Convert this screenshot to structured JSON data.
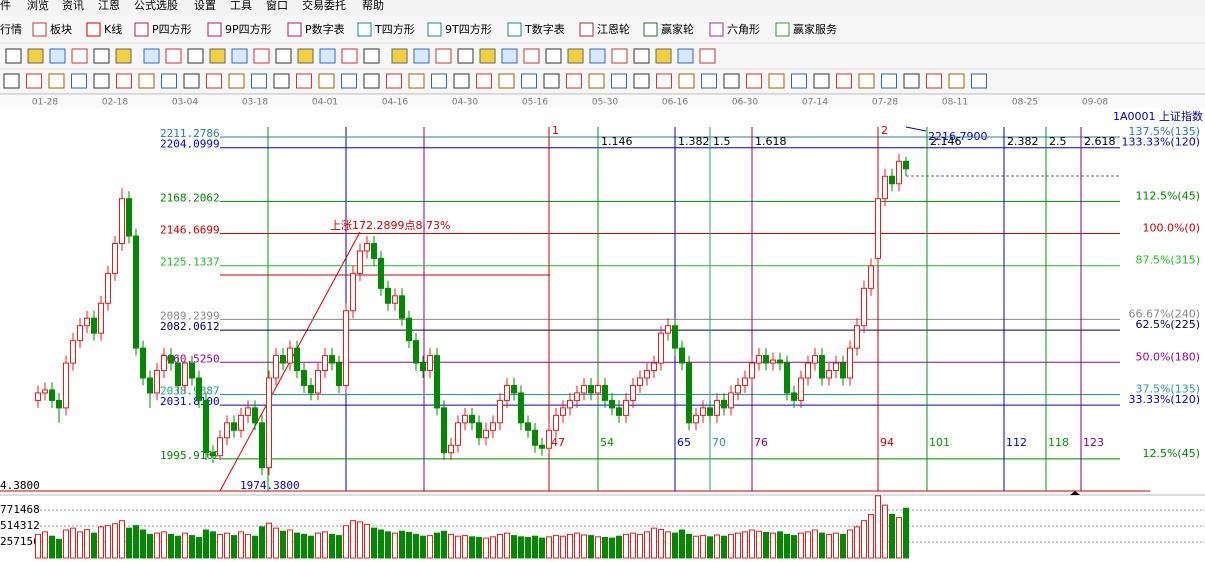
{
  "menu": [
    "件",
    "浏览",
    "资讯",
    "江恩",
    "公式选股",
    "设置",
    "工具",
    "窗口",
    "交易委托",
    "帮助"
  ],
  "toolbar": [
    "行情",
    "板块",
    "K线",
    "P四方形",
    "9P四方形",
    "P数字表",
    "T四方形",
    "9T四方形",
    "T数字表",
    "江恩轮",
    "赢家轮",
    "六角形",
    "赢家服务"
  ],
  "dates": [
    "01-28",
    "02-18",
    "03-04",
    "03-18",
    "04-01",
    "04-16",
    "04-30",
    "05-16",
    "05-30",
    "06-16",
    "06-30",
    "07-14",
    "07-28",
    "08-11",
    "08-25",
    "09-08"
  ],
  "symbol": "1A0001  上证指数",
  "levels": [
    {
      "value": 2211.2786,
      "label": "2211.2786",
      "pct": "137.5%(135)",
      "color": "#2a7aa8"
    },
    {
      "value": 2204.0999,
      "label": "2204.0999",
      "pct": "133.33%(120)",
      "color": "#0000cc"
    },
    {
      "value": 2168.2062,
      "label": "2168.2062",
      "pct": "112.5%(45)",
      "color": "#008800"
    },
    {
      "value": 2146.6699,
      "label": "2146.6699",
      "pct": "100.0%(0)",
      "color": "#cc0000"
    },
    {
      "value": 2125.1337,
      "label": "2125.1337",
      "pct": "87.5%(315)",
      "color": "#22bb22"
    },
    {
      "value": 2089.2399,
      "label": "2089.2399",
      "pct": "66.67%(240)",
      "color": "#888888"
    },
    {
      "value": 2082.0612,
      "label": "2082.0612",
      "pct": "62.5%(225)",
      "color": "#000066"
    },
    {
      "value": 2060.525,
      "label": "2060.5250",
      "pct": "50.0%(180)",
      "color": "#990099"
    },
    {
      "value": 2038.9887,
      "label": "2038.9887",
      "pct": "37.5%(135)",
      "color": "#2a9a9a"
    },
    {
      "value": 2031.81,
      "label": "2031.8100",
      "pct": "33.33%(120)",
      "color": "#0000cc"
    },
    {
      "value": 1995.9162,
      "label": "1995.9162",
      "pct": "12.5%(45)",
      "color": "#008800"
    },
    {
      "value": 1974.38,
      "label": "1974.3800",
      "color": "#cc0000"
    }
  ],
  "top_marker_label": "2216.7900",
  "cut_label": "4.3800",
  "annotation": "上涨172.2899点8.73%",
  "time_lines": [
    {
      "ratio": "1",
      "count": 47,
      "color": "#cc0000"
    },
    {
      "ratio": "1.146",
      "count": 54,
      "color": "#009900"
    },
    {
      "ratio": "1.382",
      "count": 65,
      "color": "#0000cc"
    },
    {
      "ratio": "1.5",
      "count": 70,
      "color": "#2a9a9a"
    },
    {
      "ratio": "1.618",
      "count": 76,
      "color": "#880088"
    },
    {
      "ratio": "2",
      "count": 94,
      "color": "#cc0000"
    },
    {
      "ratio": "2.146",
      "count": 101,
      "color": "#009900"
    },
    {
      "ratio": "2.382",
      "count": 112,
      "color": "#0000cc"
    },
    {
      "ratio": "2.5",
      "count": 118,
      "color": "#009900"
    },
    {
      "ratio": "2.618",
      "count": 123,
      "color": "#880088"
    }
  ],
  "candles": [
    [
      2035,
      2045,
      2030,
      2040
    ],
    [
      2040,
      2047,
      2035,
      2042
    ],
    [
      2042,
      2047,
      2030,
      2035
    ],
    [
      2035,
      2040,
      2020,
      2030
    ],
    [
      2030,
      2065,
      2025,
      2060
    ],
    [
      2060,
      2080,
      2055,
      2075
    ],
    [
      2075,
      2090,
      2070,
      2085
    ],
    [
      2085,
      2095,
      2080,
      2090
    ],
    [
      2090,
      2095,
      2075,
      2080
    ],
    [
      2080,
      2105,
      2075,
      2100
    ],
    [
      2100,
      2125,
      2095,
      2120
    ],
    [
      2120,
      2145,
      2115,
      2140
    ],
    [
      2140,
      2177,
      2135,
      2170
    ],
    [
      2170,
      2175,
      2140,
      2145
    ],
    [
      2145,
      2150,
      2065,
      2070
    ],
    [
      2070,
      2075,
      2045,
      2050
    ],
    [
      2050,
      2055,
      2030,
      2040
    ],
    [
      2040,
      2060,
      2035,
      2055
    ],
    [
      2055,
      2070,
      2050,
      2065
    ],
    [
      2065,
      2070,
      2055,
      2060
    ],
    [
      2060,
      2065,
      2040,
      2045
    ],
    [
      2045,
      2065,
      2040,
      2060
    ],
    [
      2060,
      2065,
      2045,
      2050
    ],
    [
      2050,
      2055,
      2030,
      2035
    ],
    [
      2035,
      2040,
      1995,
      2000
    ],
    [
      2000,
      2005,
      1993,
      1998
    ],
    [
      1998,
      2015,
      1995,
      2010
    ],
    [
      2010,
      2025,
      2005,
      2020
    ],
    [
      2020,
      2025,
      2010,
      2015
    ],
    [
      2015,
      2030,
      2010,
      2025
    ],
    [
      2025,
      2035,
      2020,
      2030
    ],
    [
      2030,
      2035,
      2015,
      2020
    ],
    [
      2020,
      2025,
      1985,
      1990
    ],
    [
      1990,
      2055,
      1985,
      2050
    ],
    [
      2050,
      2070,
      2045,
      2065
    ],
    [
      2065,
      2070,
      2055,
      2060
    ],
    [
      2060,
      2075,
      2055,
      2070
    ],
    [
      2070,
      2075,
      2050,
      2055
    ],
    [
      2055,
      2060,
      2040,
      2045
    ],
    [
      2045,
      2050,
      2035,
      2040
    ],
    [
      2040,
      2060,
      2035,
      2055
    ],
    [
      2055,
      2070,
      2050,
      2065
    ],
    [
      2065,
      2070,
      2055,
      2060
    ],
    [
      2060,
      2065,
      2040,
      2045
    ],
    [
      2045,
      2100,
      2040,
      2095
    ],
    [
      2095,
      2125,
      2090,
      2120
    ],
    [
      2120,
      2140,
      2115,
      2135
    ],
    [
      2135,
      2145,
      2130,
      2140
    ],
    [
      2140,
      2145,
      2125,
      2130
    ],
    [
      2130,
      2135,
      2105,
      2110
    ],
    [
      2110,
      2115,
      2095,
      2100
    ],
    [
      2100,
      2110,
      2095,
      2105
    ],
    [
      2105,
      2110,
      2085,
      2090
    ],
    [
      2090,
      2095,
      2070,
      2075
    ],
    [
      2075,
      2080,
      2055,
      2060
    ],
    [
      2060,
      2065,
      2050,
      2055
    ],
    [
      2055,
      2070,
      2050,
      2065
    ],
    [
      2065,
      2070,
      2025,
      2030
    ],
    [
      2030,
      2035,
      1995,
      2000
    ],
    [
      2000,
      2010,
      1995,
      2005
    ],
    [
      2005,
      2025,
      2000,
      2020
    ],
    [
      2020,
      2030,
      2015,
      2025
    ],
    [
      2025,
      2030,
      2015,
      2020
    ],
    [
      2020,
      2025,
      2005,
      2010
    ],
    [
      2010,
      2020,
      2005,
      2015
    ],
    [
      2015,
      2025,
      2010,
      2020
    ],
    [
      2020,
      2040,
      2015,
      2035
    ],
    [
      2035,
      2050,
      2030,
      2045
    ],
    [
      2045,
      2050,
      2035,
      2040
    ],
    [
      2040,
      2045,
      2015,
      2020
    ],
    [
      2020,
      2025,
      2010,
      2015
    ],
    [
      2015,
      2020,
      2000,
      2005
    ],
    [
      2005,
      2010,
      1998,
      2003
    ],
    [
      2003,
      2020,
      2000,
      2015
    ],
    [
      2015,
      2030,
      2010,
      2025
    ],
    [
      2025,
      2035,
      2020,
      2030
    ],
    [
      2030,
      2040,
      2025,
      2035
    ],
    [
      2035,
      2045,
      2030,
      2040
    ],
    [
      2040,
      2050,
      2035,
      2045
    ],
    [
      2045,
      2050,
      2035,
      2040
    ],
    [
      2040,
      2050,
      2035,
      2045
    ],
    [
      2045,
      2050,
      2030,
      2035
    ],
    [
      2035,
      2040,
      2025,
      2030
    ],
    [
      2030,
      2035,
      2020,
      2025
    ],
    [
      2025,
      2040,
      2020,
      2035
    ],
    [
      2035,
      2050,
      2030,
      2045
    ],
    [
      2045,
      2055,
      2040,
      2050
    ],
    [
      2050,
      2060,
      2045,
      2055
    ],
    [
      2055,
      2065,
      2050,
      2060
    ],
    [
      2060,
      2085,
      2055,
      2080
    ],
    [
      2080,
      2090,
      2075,
      2085
    ],
    [
      2085,
      2090,
      2065,
      2070
    ],
    [
      2070,
      2075,
      2055,
      2060
    ],
    [
      2060,
      2065,
      2015,
      2020
    ],
    [
      2020,
      2030,
      2015,
      2025
    ],
    [
      2025,
      2035,
      2020,
      2030
    ],
    [
      2030,
      2035,
      2020,
      2025
    ],
    [
      2025,
      2040,
      2020,
      2035
    ],
    [
      2035,
      2040,
      2025,
      2030
    ],
    [
      2030,
      2045,
      2025,
      2040
    ],
    [
      2040,
      2050,
      2035,
      2045
    ],
    [
      2045,
      2055,
      2040,
      2050
    ],
    [
      2050,
      2065,
      2045,
      2060
    ],
    [
      2060,
      2070,
      2055,
      2065
    ],
    [
      2065,
      2070,
      2055,
      2060
    ],
    [
      2060,
      2067,
      2055,
      2062
    ],
    [
      2062,
      2067,
      2055,
      2060
    ],
    [
      2060,
      2065,
      2035,
      2040
    ],
    [
      2040,
      2045,
      2030,
      2035
    ],
    [
      2035,
      2055,
      2030,
      2050
    ],
    [
      2050,
      2065,
      2045,
      2060
    ],
    [
      2060,
      2070,
      2055,
      2065
    ],
    [
      2065,
      2070,
      2045,
      2050
    ],
    [
      2050,
      2060,
      2045,
      2055
    ],
    [
      2055,
      2065,
      2050,
      2060
    ],
    [
      2060,
      2065,
      2045,
      2050
    ],
    [
      2050,
      2075,
      2045,
      2070
    ],
    [
      2070,
      2090,
      2065,
      2085
    ],
    [
      2085,
      2115,
      2080,
      2110
    ],
    [
      2110,
      2130,
      2105,
      2125
    ],
    [
      2130,
      2175,
      2125,
      2170
    ],
    [
      2170,
      2190,
      2165,
      2185
    ],
    [
      2185,
      2190,
      2175,
      2180
    ],
    [
      2180,
      2200,
      2175,
      2195
    ],
    [
      2195,
      2198,
      2185,
      2190
    ]
  ],
  "volume_ticks": [
    771468,
    514312,
    257156
  ],
  "volumes": [
    380000,
    420000,
    350000,
    300000,
    450000,
    480000,
    420000,
    460000,
    400000,
    500000,
    520000,
    550000,
    600000,
    480000,
    520000,
    450000,
    380000,
    400000,
    420000,
    380000,
    350000,
    400000,
    360000,
    330000,
    450000,
    420000,
    380000,
    400000,
    360000,
    420000,
    380000,
    350000,
    500000,
    560000,
    480000,
    430000,
    450000,
    400000,
    380000,
    350000,
    400000,
    420000,
    380000,
    360000,
    520000,
    600000,
    580000,
    540000,
    480000,
    450000,
    420000,
    400000,
    430000,
    410000,
    380000,
    350000,
    360000,
    400000,
    430000,
    380000,
    350000,
    360000,
    340000,
    330000,
    320000,
    340000,
    380000,
    400000,
    360000,
    340000,
    330000,
    350000,
    320000,
    340000,
    360000,
    350000,
    380000,
    400000,
    370000,
    360000,
    340000,
    330000,
    320000,
    350000,
    380000,
    400000,
    380000,
    420000,
    480000,
    460000,
    420000,
    400000,
    450000,
    380000,
    350000,
    360000,
    340000,
    370000,
    350000,
    380000,
    400000,
    420000,
    450000,
    430000,
    410000,
    400000,
    420000,
    380000,
    360000,
    400000,
    420000,
    450000,
    400000,
    380000,
    400000,
    380000,
    450000,
    500000,
    600000,
    700000,
    1000000,
    850000,
    700000,
    650000,
    800000
  ]
}
